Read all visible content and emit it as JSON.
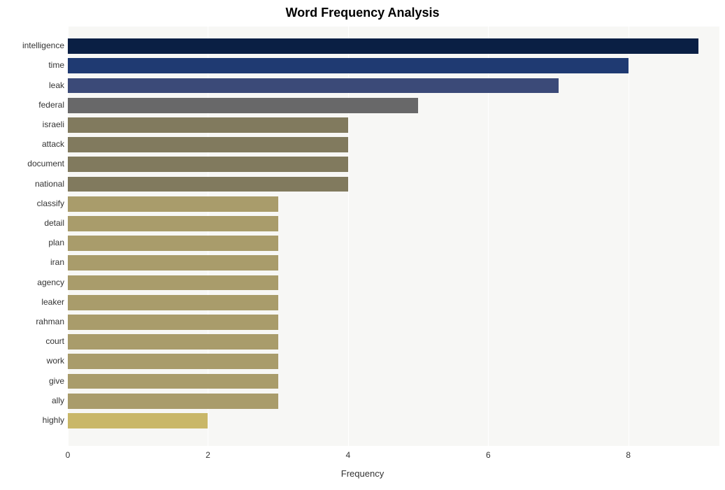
{
  "chart": {
    "type": "bar-horizontal",
    "title": "Word Frequency Analysis",
    "title_fontsize": 18,
    "title_fontweight": "bold",
    "title_color": "#000000",
    "xlabel": "Frequency",
    "xlabel_fontsize": 13,
    "xlabel_color": "#333333",
    "background_color": "#ffffff",
    "plot_background_color": "#f7f7f5",
    "grid_color": "#ffffff",
    "grid_linewidth": 1,
    "xlim": [
      0,
      9.3
    ],
    "xtick_step": 2,
    "xticks": [
      0,
      2,
      4,
      6,
      8
    ],
    "tick_fontsize": 12,
    "tick_color": "#333333",
    "bar_height_ratio": 0.78,
    "categories": [
      "intelligence",
      "time",
      "leak",
      "federal",
      "israeli",
      "attack",
      "document",
      "national",
      "classify",
      "detail",
      "plan",
      "iran",
      "agency",
      "leaker",
      "rahman",
      "court",
      "work",
      "give",
      "ally",
      "highly"
    ],
    "values": [
      9,
      8,
      7,
      5,
      4,
      4,
      4,
      4,
      3,
      3,
      3,
      3,
      3,
      3,
      3,
      3,
      3,
      3,
      3,
      2
    ],
    "bar_colors": [
      "#0a1f44",
      "#1f3a72",
      "#3b4a78",
      "#686869",
      "#817a5e",
      "#817a5e",
      "#817a5e",
      "#817a5e",
      "#a99c6b",
      "#a99c6b",
      "#a99c6b",
      "#a99c6b",
      "#a99c6b",
      "#a99c6b",
      "#a99c6b",
      "#a99c6b",
      "#a99c6b",
      "#a99c6b",
      "#a99c6b",
      "#c9b768"
    ]
  }
}
